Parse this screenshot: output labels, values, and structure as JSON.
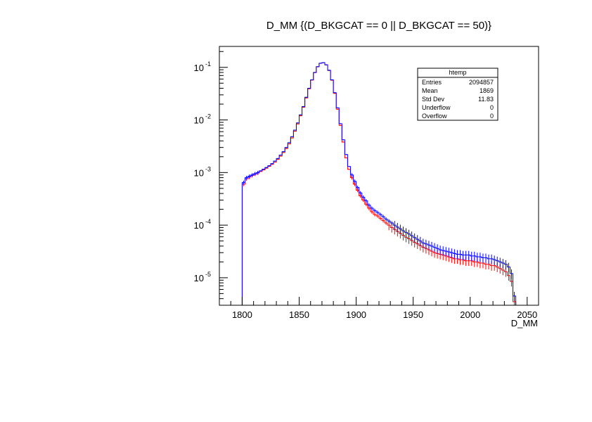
{
  "chart_data": {
    "type": "histogram",
    "title": "D_MM {(D_BKGCAT == 0 || D_BKGCAT == 50)}",
    "xlabel": "D_MM",
    "ylabel": "",
    "xlim": [
      1780,
      2060
    ],
    "ylim": [
      3e-06,
      0.25
    ],
    "y_scale": "log",
    "grid": false,
    "x_ticks": [
      1800,
      1850,
      1900,
      1950,
      2000,
      2050
    ],
    "x_tick_labels": [
      "1800",
      "1850",
      "1900",
      "1950",
      "2000",
      "2050"
    ],
    "y_ticks": [
      1e-05,
      0.0001,
      0.001,
      0.01,
      0.1
    ],
    "y_tick_labels": [
      {
        "base": "10",
        "exp": "-5"
      },
      {
        "base": "10",
        "exp": "-4"
      },
      {
        "base": "10",
        "exp": "-3"
      },
      {
        "base": "10",
        "exp": "-2"
      },
      {
        "base": "10",
        "exp": "-1"
      }
    ],
    "bin_width": 2.5,
    "series": [
      {
        "color": "#0000ff",
        "bin_centers": [
          1801.25,
          1803.75,
          1806.25,
          1808.75,
          1811.25,
          1813.75,
          1816.25,
          1818.75,
          1821.25,
          1823.75,
          1826.25,
          1828.75,
          1831.25,
          1833.75,
          1836.25,
          1838.75,
          1841.25,
          1843.75,
          1846.25,
          1848.75,
          1851.25,
          1853.75,
          1856.25,
          1858.75,
          1861.25,
          1863.75,
          1866.25,
          1868.75,
          1871.25,
          1873.75,
          1876.25,
          1878.75,
          1881.25,
          1883.75,
          1886.25,
          1888.75,
          1891.25,
          1893.75,
          1896.25,
          1898.75,
          1901.25,
          1903.75,
          1906.25,
          1908.75,
          1911.25,
          1913.75,
          1916.25,
          1918.75,
          1921.25,
          1923.75,
          1926.25,
          1928.75,
          1931.25,
          1933.75,
          1936.25,
          1938.75,
          1941.25,
          1943.75,
          1946.25,
          1948.75,
          1951.25,
          1953.75,
          1956.25,
          1958.75,
          1961.25,
          1963.75,
          1966.25,
          1968.75,
          1971.25,
          1973.75,
          1976.25,
          1978.75,
          1981.25,
          1983.75,
          1986.25,
          1988.75,
          1991.25,
          1993.75,
          1996.25,
          1998.75,
          2001.25,
          2003.75,
          2006.25,
          2008.75,
          2011.25,
          2013.75,
          2016.25,
          2018.75,
          2021.25,
          2023.75,
          2026.25,
          2028.75,
          2031.25,
          2033.75,
          2036.25,
          2038.75
        ],
        "values": [
          0.00065,
          0.0008,
          0.00085,
          0.0009,
          0.00095,
          0.001,
          0.00108,
          0.00116,
          0.00125,
          0.00135,
          0.00148,
          0.00165,
          0.00185,
          0.00215,
          0.0025,
          0.003,
          0.0037,
          0.0048,
          0.0064,
          0.0088,
          0.0125,
          0.018,
          0.027,
          0.04,
          0.058,
          0.08,
          0.103,
          0.12,
          0.123,
          0.112,
          0.088,
          0.058,
          0.033,
          0.017,
          0.0085,
          0.0042,
          0.0022,
          0.0013,
          0.0009,
          0.00068,
          0.00052,
          0.00041,
          0.00034,
          0.00029,
          0.00024,
          0.00021,
          0.00019,
          0.000175,
          0.00016,
          0.000145,
          0.00013,
          0.00012,
          0.00011,
          0.0001,
          9.2e-05,
          8.5e-05,
          7.8e-05,
          7.3e-05,
          6.8e-05,
          6.3e-05,
          5.8e-05,
          5.4e-05,
          5e-05,
          4.6e-05,
          4.4e-05,
          4.2e-05,
          4e-05,
          3.8e-05,
          3.6e-05,
          3.4e-05,
          3.3e-05,
          3.2e-05,
          3.1e-05,
          3e-05,
          2.9e-05,
          2.8e-05,
          2.8e-05,
          2.7e-05,
          2.7e-05,
          2.7e-05,
          2.6e-05,
          2.6e-05,
          2.5e-05,
          2.5e-05,
          2.4e-05,
          2.4e-05,
          2.3e-05,
          2.3e-05,
          2.2e-05,
          2.1e-05,
          2e-05,
          1.9e-05,
          1.8e-05,
          1.6e-05,
          1.2e-05,
          4.5e-06
        ]
      },
      {
        "color": "#ff0000",
        "bin_centers": [
          1801.25,
          1803.75,
          1806.25,
          1808.75,
          1811.25,
          1813.75,
          1816.25,
          1818.75,
          1821.25,
          1823.75,
          1826.25,
          1828.75,
          1831.25,
          1833.75,
          1836.25,
          1838.75,
          1841.25,
          1843.75,
          1846.25,
          1848.75,
          1851.25,
          1853.75,
          1856.25,
          1858.75,
          1861.25,
          1863.75,
          1866.25,
          1868.75,
          1871.25,
          1873.75,
          1876.25,
          1878.75,
          1881.25,
          1883.75,
          1886.25,
          1888.75,
          1891.25,
          1893.75,
          1896.25,
          1898.75,
          1901.25,
          1903.75,
          1906.25,
          1908.75,
          1911.25,
          1913.75,
          1916.25,
          1918.75,
          1921.25,
          1923.75,
          1926.25,
          1928.75,
          1931.25,
          1933.75,
          1936.25,
          1938.75,
          1941.25,
          1943.75,
          1946.25,
          1948.75,
          1951.25,
          1953.75,
          1956.25,
          1958.75,
          1961.25,
          1963.75,
          1966.25,
          1968.75,
          1971.25,
          1973.75,
          1976.25,
          1978.75,
          1981.25,
          1983.75,
          1986.25,
          1988.75,
          1991.25,
          1993.75,
          1996.25,
          1998.75,
          2001.25,
          2003.75,
          2006.25,
          2008.75,
          2011.25,
          2013.75,
          2016.25,
          2018.75,
          2021.25,
          2023.75,
          2026.25,
          2028.75,
          2031.25,
          2033.75,
          2036.25,
          2038.75
        ],
        "values": [
          0.0006,
          0.00076,
          0.00082,
          0.00088,
          0.00093,
          0.00098,
          0.00105,
          0.00112,
          0.00121,
          0.00131,
          0.00143,
          0.00158,
          0.00178,
          0.00205,
          0.0024,
          0.00285,
          0.0035,
          0.00455,
          0.0061,
          0.0084,
          0.012,
          0.0175,
          0.0262,
          0.0392,
          0.0572,
          0.0795,
          0.1025,
          0.1195,
          0.1225,
          0.1115,
          0.087,
          0.057,
          0.032,
          0.016,
          0.0079,
          0.0038,
          0.0019,
          0.00115,
          0.0008,
          0.0006,
          0.00046,
          0.00036,
          0.0003,
          0.00025,
          0.00021,
          0.00018,
          0.00016,
          0.00015,
          0.000135,
          0.000122,
          0.00011,
          0.0001,
          9e-05,
          8.3e-05,
          7.6e-05,
          7e-05,
          6.4e-05,
          5.9e-05,
          5.5e-05,
          5.1e-05,
          4.7e-05,
          4.4e-05,
          4.1e-05,
          3.8e-05,
          3.6e-05,
          3.4e-05,
          3.2e-05,
          3e-05,
          2.9e-05,
          2.8e-05,
          2.7e-05,
          2.6e-05,
          2.5e-05,
          2.4e-05,
          2.3e-05,
          2.3e-05,
          2.2e-05,
          2.2e-05,
          2.1e-05,
          2.1e-05,
          2.1e-05,
          2e-05,
          2e-05,
          1.9e-05,
          1.9e-05,
          1.8e-05,
          1.8e-05,
          1.7e-05,
          1.7e-05,
          1.6e-05,
          1.5e-05,
          1.4e-05,
          1.3e-05,
          1.1e-05,
          8.5e-06,
          3.5e-06
        ]
      }
    ],
    "stats_box": {
      "title": "htemp",
      "rows": [
        {
          "label": "Entries",
          "value": "2094857"
        },
        {
          "label": "Mean",
          "value": "1869"
        },
        {
          "label": "Std Dev",
          "value": "11.83"
        },
        {
          "label": "Underflow",
          "value": "0"
        },
        {
          "label": "Overflow",
          "value": "0"
        }
      ]
    }
  }
}
